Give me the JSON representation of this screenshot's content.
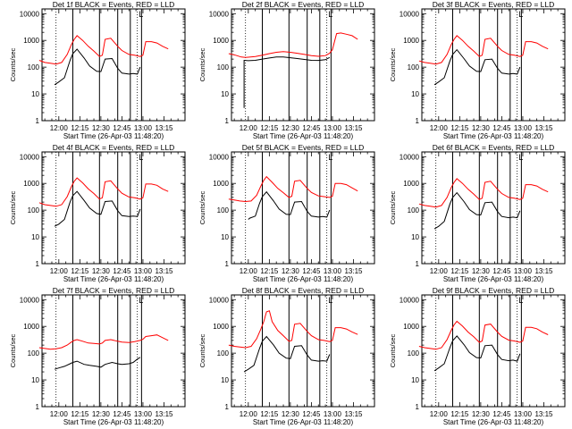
{
  "chart_data": {
    "type": "line",
    "layout": "3x3 grid of panels",
    "colors": {
      "events": "#000000",
      "lld": "#ff0000",
      "marker_lines": "#000000"
    },
    "shared": {
      "ylabel": "Counts/sec",
      "xlabel": "Start Time (26-Apr-03 11:48:20)",
      "x_tick_labels": [
        "12:00",
        "12:15",
        "12:30",
        "12:45",
        "13:00",
        "13:15"
      ],
      "x_ticks_minutes": [
        0,
        15,
        30,
        45,
        60,
        75
      ],
      "x_range_minutes_from_12_00": [
        -12,
        90
      ],
      "y_scale": "log",
      "y_range": [
        1,
        15000
      ],
      "y_tick_labels": [
        "1",
        "10",
        "100",
        "1000",
        "10000"
      ],
      "y_ticks": [
        1,
        10,
        100,
        1000,
        10000
      ],
      "dotted_vertical_lines_minutes": [
        -2,
        56
      ],
      "solid_vertical_lines_minutes": [
        10,
        29,
        42,
        51,
        59
      ],
      "small_bracket_label": "L"
    },
    "panels": [
      {
        "title": "Det 1f BLACK = Events, RED = LLD",
        "series": [
          {
            "name": "Events",
            "color": "#000000",
            "x": [
              -3,
              0,
              4,
              8,
              10,
              13,
              18,
              22,
              27,
              30,
              33,
              38,
              42,
              45,
              50,
              53,
              56,
              58
            ],
            "y": [
              22,
              28,
              40,
              180,
              320,
              470,
              220,
              110,
              70,
              68,
              200,
              210,
              90,
              60,
              55,
              58,
              55,
              100
            ]
          },
          {
            "name": "LLD",
            "color": "#ff0000",
            "x": [
              -14,
              -10,
              -6,
              -2,
              2,
              6,
              9,
              11,
              13,
              17,
              21,
              25,
              29,
              31,
              33,
              37,
              42,
              45,
              50,
              54,
              58,
              60,
              62,
              66,
              70,
              74,
              78
            ],
            "y": [
              180,
              150,
              140,
              130,
              150,
              300,
              700,
              1100,
              1500,
              1000,
              600,
              400,
              250,
              280,
              1100,
              1200,
              600,
              420,
              300,
              280,
              250,
              280,
              900,
              900,
              800,
              600,
              480
            ]
          }
        ]
      },
      {
        "title": "Det 2f BLACK = Events, RED = LLD",
        "series": [
          {
            "name": "Events",
            "color": "#000000",
            "x": [
              -3,
              -3,
              0,
              5,
              10,
              15,
              20,
              25,
              30,
              35,
              40,
              45,
              50,
              55,
              58
            ],
            "y": [
              3,
              180,
              175,
              180,
              200,
              220,
              240,
              240,
              225,
              210,
              195,
              180,
              178,
              190,
              230
            ]
          },
          {
            "name": "LLD",
            "color": "#ff0000",
            "x": [
              -14,
              -9,
              -5,
              -2,
              0,
              5,
              10,
              15,
              20,
              25,
              30,
              35,
              40,
              45,
              50,
              55,
              58,
              60,
              63,
              66,
              70,
              74,
              78
            ],
            "y": [
              320,
              280,
              240,
              230,
              235,
              250,
              280,
              320,
              360,
              380,
              360,
              330,
              300,
              270,
              255,
              270,
              330,
              450,
              1800,
              1900,
              1700,
              1500,
              1100
            ]
          }
        ]
      },
      {
        "title": "Det 3f BLACK = Events, RED = LLD",
        "series": [
          {
            "name": "Events",
            "color": "#000000",
            "x": [
              -3,
              0,
              4,
              8,
              10,
              13,
              18,
              22,
              27,
              30,
              33,
              38,
              42,
              45,
              50,
              53,
              56,
              58
            ],
            "y": [
              22,
              28,
              40,
              170,
              300,
              450,
              210,
              110,
              70,
              68,
              190,
              200,
              90,
              60,
              55,
              58,
              55,
              100
            ]
          },
          {
            "name": "LLD",
            "color": "#ff0000",
            "x": [
              -14,
              -10,
              -6,
              -2,
              2,
              6,
              9,
              11,
              13,
              17,
              21,
              25,
              29,
              31,
              33,
              37,
              42,
              45,
              50,
              54,
              58,
              60,
              62,
              66,
              70,
              74,
              78
            ],
            "y": [
              170,
              150,
              140,
              130,
              150,
              300,
              700,
              1100,
              1500,
              1000,
              600,
              400,
              250,
              280,
              1100,
              1200,
              600,
              420,
              300,
              280,
              250,
              280,
              900,
              900,
              800,
              600,
              480
            ]
          }
        ]
      },
      {
        "title": "Det 4f BLACK = Events, RED = LLD",
        "series": [
          {
            "name": "Events",
            "color": "#000000",
            "x": [
              -3,
              0,
              4,
              8,
              10,
              13,
              18,
              22,
              27,
              30,
              33,
              38,
              42,
              45,
              50,
              53,
              56,
              58
            ],
            "y": [
              25,
              30,
              45,
              200,
              350,
              500,
              230,
              120,
              75,
              70,
              210,
              220,
              95,
              62,
              58,
              60,
              58,
              110
            ]
          },
          {
            "name": "LLD",
            "color": "#ff0000",
            "x": [
              -14,
              -10,
              -6,
              -2,
              2,
              6,
              9,
              11,
              13,
              17,
              21,
              25,
              29,
              31,
              33,
              37,
              42,
              45,
              50,
              54,
              58,
              60,
              62,
              66,
              70,
              74,
              78
            ],
            "y": [
              190,
              160,
              150,
              140,
              160,
              320,
              750,
              1200,
              1600,
              1050,
              620,
              420,
              260,
              290,
              1150,
              1250,
              620,
              430,
              310,
              290,
              260,
              290,
              950,
              950,
              850,
              620,
              500
            ]
          }
        ]
      },
      {
        "title": "Det 5f BLACK = Events, RED = LLD",
        "series": [
          {
            "name": "Events",
            "color": "#000000",
            "x": [
              0,
              1,
              5,
              8,
              10,
              13,
              18,
              22,
              27,
              30,
              33,
              38,
              42,
              45,
              50,
              53,
              56,
              58
            ],
            "y": [
              45,
              50,
              60,
              180,
              320,
              480,
              220,
              110,
              70,
              68,
              200,
              210,
              90,
              60,
              55,
              58,
              55,
              100
            ]
          },
          {
            "name": "LLD",
            "color": "#ff0000",
            "x": [
              -14,
              -10,
              -6,
              -2,
              2,
              6,
              9,
              11,
              13,
              17,
              21,
              25,
              29,
              31,
              33,
              37,
              42,
              45,
              50,
              54,
              58,
              60,
              62,
              66,
              70,
              74,
              78
            ],
            "y": [
              260,
              240,
              220,
              210,
              220,
              360,
              800,
              1300,
              1800,
              1100,
              650,
              450,
              300,
              330,
              1200,
              1300,
              650,
              460,
              340,
              320,
              300,
              330,
              1000,
              1000,
              900,
              680,
              520
            ]
          }
        ]
      },
      {
        "title": "Det 6f BLACK = Events, RED = LLD",
        "series": [
          {
            "name": "Events",
            "color": "#000000",
            "x": [
              -3,
              0,
              4,
              8,
              10,
              13,
              18,
              22,
              27,
              30,
              33,
              38,
              42,
              45,
              50,
              53,
              56,
              58
            ],
            "y": [
              20,
              25,
              38,
              170,
              300,
              450,
              210,
              105,
              68,
              66,
              190,
              200,
              88,
              58,
              52,
              55,
              52,
              95
            ]
          },
          {
            "name": "LLD",
            "color": "#ff0000",
            "x": [
              -14,
              -10,
              -6,
              -2,
              2,
              6,
              9,
              11,
              13,
              17,
              21,
              25,
              29,
              31,
              33,
              37,
              42,
              45,
              50,
              54,
              58,
              60,
              62,
              66,
              70,
              74,
              78
            ],
            "y": [
              170,
              150,
              140,
              130,
              150,
              300,
              700,
              1100,
              1500,
              1000,
              600,
              400,
              250,
              280,
              1100,
              1200,
              600,
              420,
              300,
              280,
              250,
              280,
              900,
              900,
              800,
              600,
              480
            ]
          }
        ]
      },
      {
        "title": "Det 7f BLACK = Events, RED = LLD",
        "series": [
          {
            "name": "Events",
            "color": "#000000",
            "x": [
              -3,
              0,
              4,
              8,
              10,
              13,
              18,
              22,
              27,
              30,
              33,
              38,
              42,
              45,
              50,
              53,
              56,
              58
            ],
            "y": [
              25,
              28,
              32,
              40,
              45,
              50,
              38,
              35,
              32,
              30,
              38,
              45,
              40,
              38,
              40,
              45,
              60,
              70
            ]
          },
          {
            "name": "LLD",
            "color": "#ff0000",
            "x": [
              -14,
              -10,
              -6,
              -2,
              2,
              6,
              9,
              11,
              13,
              17,
              21,
              25,
              29,
              31,
              33,
              37,
              42,
              45,
              50,
              54,
              58,
              60,
              62,
              66,
              70,
              74,
              78
            ],
            "y": [
              160,
              150,
              140,
              145,
              160,
              200,
              260,
              300,
              320,
              280,
              240,
              230,
              220,
              240,
              300,
              320,
              280,
              260,
              250,
              270,
              300,
              330,
              420,
              450,
              480,
              380,
              300
            ]
          }
        ]
      },
      {
        "title": "Det 8f BLACK = Events, RED = LLD",
        "series": [
          {
            "name": "Events",
            "color": "#000000",
            "x": [
              -3,
              0,
              4,
              8,
              10,
              13,
              18,
              22,
              27,
              30,
              33,
              38,
              42,
              45,
              50,
              53,
              56,
              58
            ],
            "y": [
              20,
              25,
              35,
              150,
              280,
              420,
              200,
              100,
              65,
              62,
              180,
              190,
              85,
              55,
              50,
              52,
              50,
              90
            ]
          },
          {
            "name": "LLD",
            "color": "#ff0000",
            "x": [
              -14,
              -10,
              -6,
              -2,
              2,
              6,
              9,
              11,
              13,
              15,
              17,
              21,
              25,
              29,
              31,
              33,
              37,
              42,
              45,
              50,
              54,
              58,
              60,
              62,
              66,
              70,
              74,
              78
            ],
            "y": [
              200,
              180,
              170,
              160,
              180,
              350,
              800,
              1500,
              3500,
              3800,
              1500,
              700,
              450,
              280,
              300,
              1200,
              1300,
              650,
              450,
              320,
              300,
              270,
              300,
              900,
              900,
              800,
              620,
              500
            ]
          }
        ]
      },
      {
        "title": "Det 9f BLACK = Events, RED = LLD",
        "series": [
          {
            "name": "Events",
            "color": "#000000",
            "x": [
              -3,
              0,
              4,
              8,
              10,
              13,
              18,
              22,
              27,
              30,
              33,
              38,
              42,
              45,
              50,
              53,
              56,
              58
            ],
            "y": [
              22,
              28,
              40,
              160,
              290,
              440,
              210,
              105,
              68,
              66,
              190,
              200,
              88,
              58,
              52,
              55,
              50,
              95
            ]
          },
          {
            "name": "LLD",
            "color": "#ff0000",
            "x": [
              -14,
              -10,
              -6,
              -2,
              2,
              6,
              9,
              11,
              13,
              17,
              21,
              25,
              29,
              31,
              33,
              37,
              42,
              45,
              50,
              54,
              58,
              60,
              62,
              66,
              70,
              74,
              78
            ],
            "y": [
              180,
              160,
              150,
              140,
              160,
              320,
              720,
              1150,
              1550,
              1020,
              610,
              410,
              255,
              285,
              1120,
              1220,
              610,
              425,
              305,
              285,
              255,
              285,
              920,
              920,
              820,
              610,
              490
            ]
          }
        ]
      }
    ]
  }
}
